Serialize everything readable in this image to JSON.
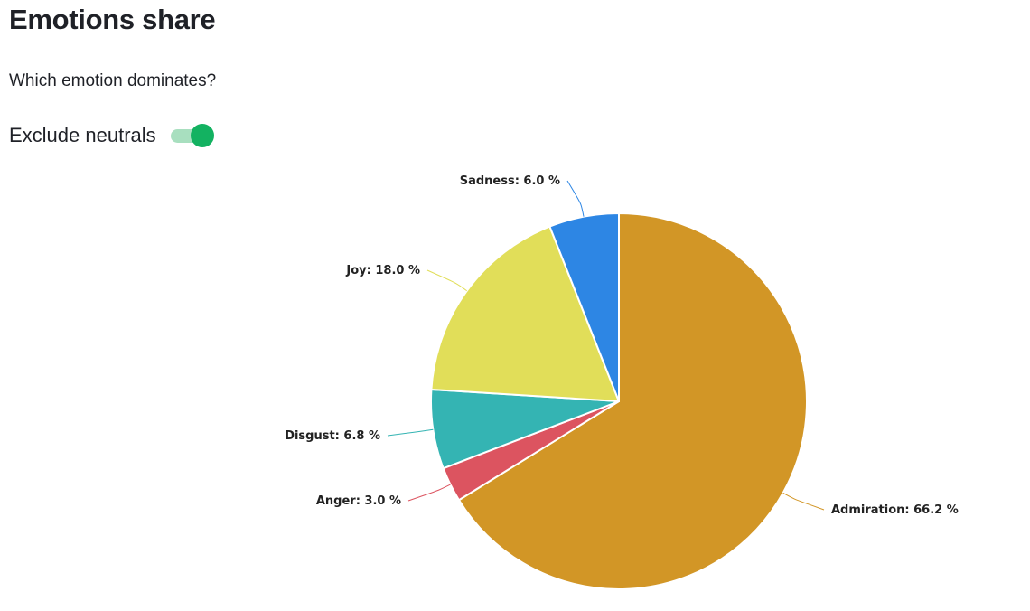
{
  "header": {
    "title": "Emotions share",
    "subtitle": "Which emotion dominates?"
  },
  "controls": {
    "exclude_neutrals": {
      "label": "Exclude neutrals",
      "checked": true,
      "track_color": "#a8dfbf",
      "knob_color": "#13b261"
    }
  },
  "chart_data": {
    "type": "pie",
    "slices": [
      {
        "name": "Admiration",
        "value": 66.2,
        "label": "Admiration: 66.2 %",
        "color": "#d29626"
      },
      {
        "name": "Anger",
        "value": 3.0,
        "label": "Anger: 3.0 %",
        "color": "#dc5460"
      },
      {
        "name": "Disgust",
        "value": 6.8,
        "label": "Disgust: 6.8 %",
        "color": "#34b4b3"
      },
      {
        "name": "Joy",
        "value": 18.0,
        "label": "Joy: 18.0 %",
        "color": "#e1de59"
      },
      {
        "name": "Sadness",
        "value": 6.0,
        "label": "Sadness: 6.0 %",
        "color": "#2d86e4"
      }
    ],
    "start": "12 o'clock",
    "direction": "clockwise",
    "data_labels": "outside with connector lines"
  }
}
